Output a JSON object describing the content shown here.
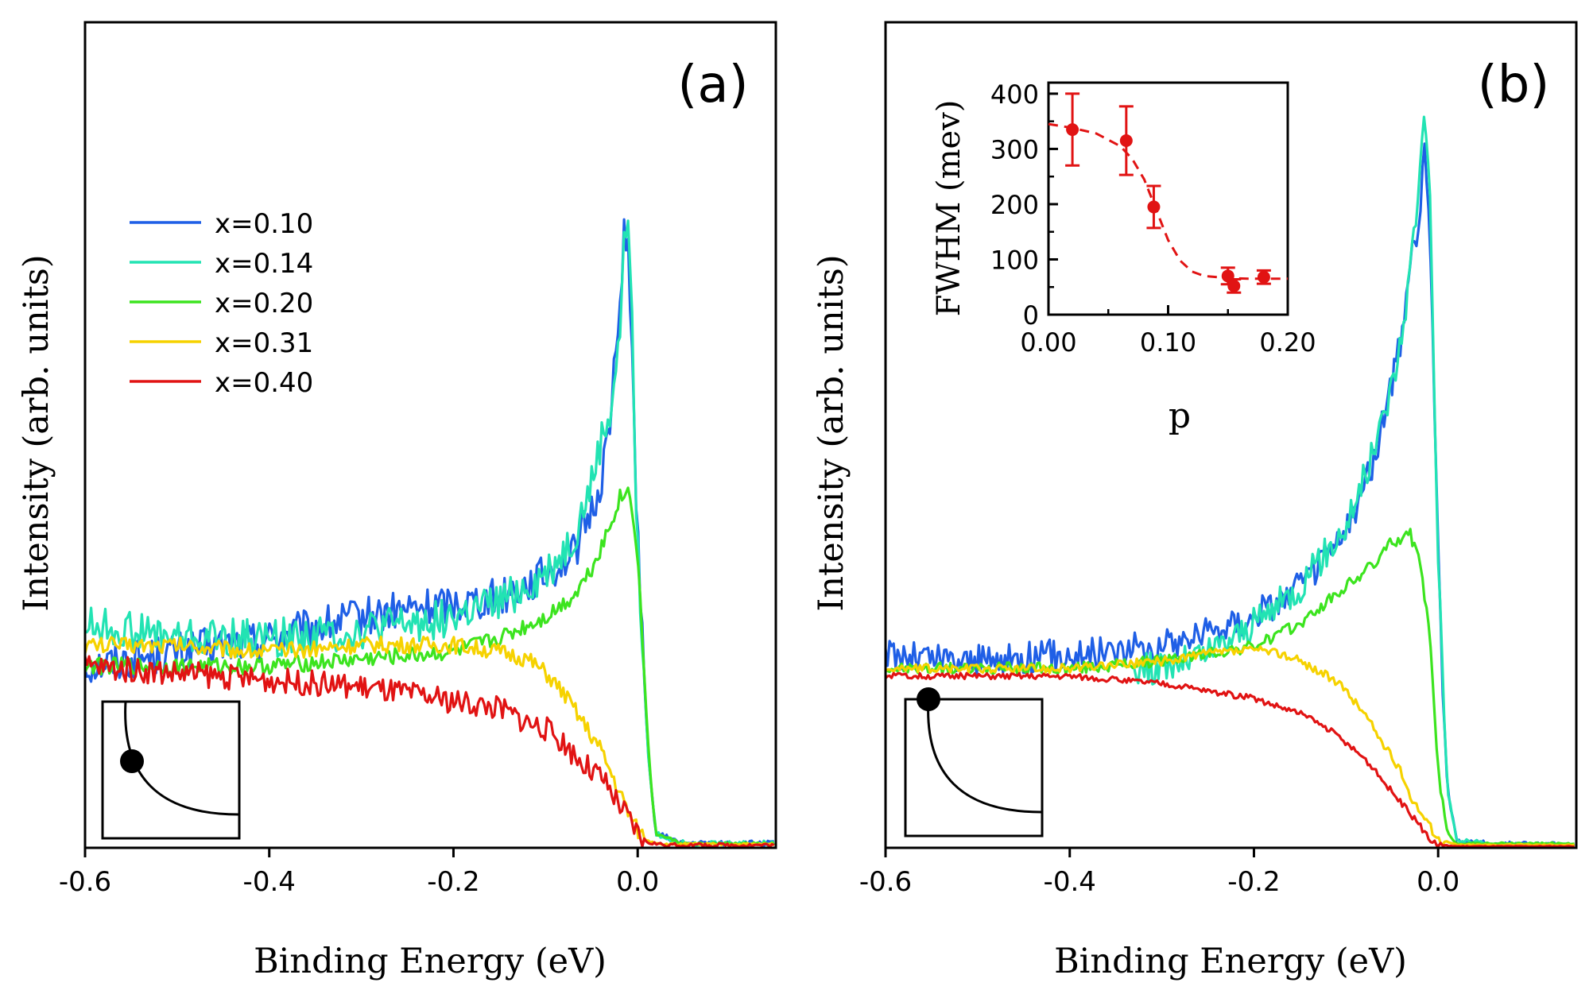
{
  "colors": {
    "x010": "#1f5fe6",
    "x014": "#22e3b3",
    "x020": "#3ce41f",
    "x031": "#f6d200",
    "x040": "#e11313",
    "inset_red": "#e11313",
    "axis": "#000000"
  },
  "chart_data": [
    {
      "type": "line",
      "panel_label": "(a)",
      "xlabel": "Binding Energy (eV)",
      "ylabel": "Intensity (arb. units)",
      "xlim": [
        -0.6,
        0.15
      ],
      "ylim": [
        0,
        1.0
      ],
      "x_ticks": [
        -0.6,
        -0.4,
        -0.2,
        0.0
      ],
      "x_tick_labels": [
        "-0.6",
        "-0.4",
        "-0.2",
        "0.0"
      ],
      "legend": {
        "position": "upper-left",
        "entries": [
          "x=0.10",
          "x=0.14",
          "x=0.20",
          "x=0.31",
          "x=0.40"
        ]
      },
      "marker_inset_icon": "fermi-surface-node-icon",
      "series": [
        {
          "name": "x=0.10",
          "color_key": "x010",
          "noise": 0.028,
          "points": [
            [
              -0.6,
              0.26
            ],
            [
              -0.5,
              0.28
            ],
            [
              -0.4,
              0.3
            ],
            [
              -0.3,
              0.33
            ],
            [
              -0.2,
              0.35
            ],
            [
              -0.15,
              0.36
            ],
            [
              -0.1,
              0.39
            ],
            [
              -0.07,
              0.42
            ],
            [
              -0.05,
              0.48
            ],
            [
              -0.04,
              0.52
            ],
            [
              -0.03,
              0.62
            ],
            [
              -0.02,
              0.75
            ],
            [
              -0.015,
              0.89
            ],
            [
              -0.01,
              0.86
            ],
            [
              -0.006,
              0.7
            ],
            [
              -0.002,
              0.5
            ],
            [
              0.005,
              0.3
            ],
            [
              0.012,
              0.12
            ],
            [
              0.02,
              0.02
            ],
            [
              0.05,
              0.006
            ],
            [
              0.15,
              0.006
            ]
          ]
        },
        {
          "name": "x=0.14",
          "color_key": "x014",
          "noise": 0.028,
          "points": [
            [
              -0.6,
              0.32
            ],
            [
              -0.5,
              0.3
            ],
            [
              -0.4,
              0.3
            ],
            [
              -0.3,
              0.31
            ],
            [
              -0.2,
              0.33
            ],
            [
              -0.15,
              0.35
            ],
            [
              -0.1,
              0.39
            ],
            [
              -0.07,
              0.44
            ],
            [
              -0.05,
              0.52
            ],
            [
              -0.04,
              0.58
            ],
            [
              -0.03,
              0.62
            ],
            [
              -0.02,
              0.72
            ],
            [
              -0.015,
              0.85
            ],
            [
              -0.01,
              0.92
            ],
            [
              -0.006,
              0.74
            ],
            [
              -0.002,
              0.5
            ],
            [
              0.005,
              0.3
            ],
            [
              0.012,
              0.12
            ],
            [
              0.02,
              0.02
            ],
            [
              0.05,
              0.006
            ],
            [
              0.15,
              0.006
            ]
          ]
        },
        {
          "name": "x=0.20",
          "color_key": "x020",
          "noise": 0.012,
          "points": [
            [
              -0.6,
              0.26
            ],
            [
              -0.5,
              0.26
            ],
            [
              -0.4,
              0.26
            ],
            [
              -0.3,
              0.27
            ],
            [
              -0.2,
              0.28
            ],
            [
              -0.15,
              0.3
            ],
            [
              -0.1,
              0.33
            ],
            [
              -0.07,
              0.36
            ],
            [
              -0.05,
              0.4
            ],
            [
              -0.03,
              0.46
            ],
            [
              -0.02,
              0.5
            ],
            [
              -0.01,
              0.51
            ],
            [
              -0.005,
              0.48
            ],
            [
              0.0,
              0.42
            ],
            [
              0.005,
              0.3
            ],
            [
              0.01,
              0.18
            ],
            [
              0.015,
              0.08
            ],
            [
              0.02,
              0.02
            ],
            [
              0.05,
              0.006
            ],
            [
              0.15,
              0.006
            ]
          ]
        },
        {
          "name": "x=0.31",
          "color_key": "x031",
          "noise": 0.012,
          "points": [
            [
              -0.6,
              0.29
            ],
            [
              -0.5,
              0.29
            ],
            [
              -0.4,
              0.28
            ],
            [
              -0.3,
              0.29
            ],
            [
              -0.2,
              0.29
            ],
            [
              -0.15,
              0.28
            ],
            [
              -0.12,
              0.27
            ],
            [
              -0.1,
              0.25
            ],
            [
              -0.08,
              0.22
            ],
            [
              -0.06,
              0.18
            ],
            [
              -0.04,
              0.14
            ],
            [
              -0.03,
              0.11
            ],
            [
              -0.02,
              0.08
            ],
            [
              -0.01,
              0.05
            ],
            [
              0.0,
              0.025
            ],
            [
              0.01,
              0.01
            ],
            [
              0.03,
              0.005
            ],
            [
              0.15,
              0.005
            ]
          ]
        },
        {
          "name": "x=0.40",
          "color_key": "x040",
          "noise": 0.018,
          "points": [
            [
              -0.6,
              0.26
            ],
            [
              -0.5,
              0.25
            ],
            [
              -0.4,
              0.24
            ],
            [
              -0.3,
              0.23
            ],
            [
              -0.2,
              0.21
            ],
            [
              -0.15,
              0.2
            ],
            [
              -0.12,
              0.18
            ],
            [
              -0.1,
              0.17
            ],
            [
              -0.08,
              0.15
            ],
            [
              -0.06,
              0.12
            ],
            [
              -0.04,
              0.1
            ],
            [
              -0.03,
              0.08
            ],
            [
              -0.02,
              0.06
            ],
            [
              -0.01,
              0.04
            ],
            [
              0.0,
              0.02
            ],
            [
              0.01,
              0.008
            ],
            [
              0.03,
              0.004
            ],
            [
              0.15,
              0.004
            ]
          ]
        }
      ]
    },
    {
      "type": "line",
      "panel_label": "(b)",
      "xlabel": "Binding Energy (eV)",
      "ylabel": "Intensity (arb. units)",
      "xlim": [
        -0.6,
        0.15
      ],
      "ylim": [
        0,
        1.0
      ],
      "x_ticks": [
        -0.6,
        -0.4,
        -0.2,
        0.0
      ],
      "x_tick_labels": [
        "-0.6",
        "-0.4",
        "-0.2",
        "0.0"
      ],
      "marker_inset_icon": "fermi-surface-antinode-icon",
      "series": [
        {
          "name": "x=0.10",
          "color_key": "x010",
          "noise": 0.022,
          "points": [
            [
              -0.6,
              0.26
            ],
            [
              -0.5,
              0.25
            ],
            [
              -0.4,
              0.26
            ],
            [
              -0.3,
              0.27
            ],
            [
              -0.2,
              0.31
            ],
            [
              -0.15,
              0.35
            ],
            [
              -0.1,
              0.42
            ],
            [
              -0.07,
              0.52
            ],
            [
              -0.05,
              0.62
            ],
            [
              -0.04,
              0.68
            ],
            [
              -0.03,
              0.78
            ],
            [
              -0.02,
              0.84
            ],
            [
              -0.015,
              0.95
            ],
            [
              -0.01,
              0.86
            ],
            [
              -0.006,
              0.7
            ],
            [
              -0.002,
              0.48
            ],
            [
              0.004,
              0.25
            ],
            [
              0.01,
              0.08
            ],
            [
              0.02,
              0.01
            ],
            [
              0.06,
              0.005
            ],
            [
              0.15,
              0.005
            ]
          ]
        },
        {
          "name": "x=0.14",
          "color_key": "x014",
          "noise": 0.022,
          "points": [
            [
              -0.33,
              0.24
            ],
            [
              -0.3,
              0.24
            ],
            [
              -0.25,
              0.26
            ],
            [
              -0.2,
              0.3
            ],
            [
              -0.15,
              0.35
            ],
            [
              -0.1,
              0.43
            ],
            [
              -0.07,
              0.53
            ],
            [
              -0.05,
              0.62
            ],
            [
              -0.04,
              0.68
            ],
            [
              -0.03,
              0.78
            ],
            [
              -0.02,
              0.9
            ],
            [
              -0.015,
              1.0
            ],
            [
              -0.01,
              0.92
            ],
            [
              -0.006,
              0.72
            ],
            [
              -0.002,
              0.48
            ],
            [
              0.004,
              0.25
            ],
            [
              0.01,
              0.08
            ],
            [
              0.02,
              0.01
            ],
            [
              0.06,
              0.005
            ]
          ]
        },
        {
          "name": "x=0.20",
          "color_key": "x020",
          "noise": 0.008,
          "points": [
            [
              -0.6,
              0.24
            ],
            [
              -0.5,
              0.24
            ],
            [
              -0.4,
              0.24
            ],
            [
              -0.3,
              0.25
            ],
            [
              -0.2,
              0.27
            ],
            [
              -0.15,
              0.3
            ],
            [
              -0.1,
              0.35
            ],
            [
              -0.07,
              0.38
            ],
            [
              -0.05,
              0.41
            ],
            [
              -0.03,
              0.42
            ],
            [
              -0.02,
              0.38
            ],
            [
              -0.01,
              0.3
            ],
            [
              -0.005,
              0.2
            ],
            [
              0.0,
              0.1
            ],
            [
              0.01,
              0.02
            ],
            [
              0.02,
              0.006
            ],
            [
              0.15,
              0.006
            ]
          ]
        },
        {
          "name": "x=0.31",
          "color_key": "x031",
          "noise": 0.006,
          "points": [
            [
              -0.6,
              0.24
            ],
            [
              -0.5,
              0.24
            ],
            [
              -0.4,
              0.24
            ],
            [
              -0.3,
              0.25
            ],
            [
              -0.25,
              0.26
            ],
            [
              -0.2,
              0.265
            ],
            [
              -0.17,
              0.26
            ],
            [
              -0.15,
              0.25
            ],
            [
              -0.12,
              0.23
            ],
            [
              -0.1,
              0.21
            ],
            [
              -0.08,
              0.18
            ],
            [
              -0.06,
              0.14
            ],
            [
              -0.04,
              0.1
            ],
            [
              -0.03,
              0.07
            ],
            [
              -0.02,
              0.05
            ],
            [
              -0.01,
              0.03
            ],
            [
              0.0,
              0.012
            ],
            [
              0.02,
              0.004
            ],
            [
              0.15,
              0.004
            ]
          ]
        },
        {
          "name": "x=0.40",
          "color_key": "x040",
          "noise": 0.004,
          "points": [
            [
              -0.6,
              0.23
            ],
            [
              -0.5,
              0.23
            ],
            [
              -0.4,
              0.23
            ],
            [
              -0.3,
              0.22
            ],
            [
              -0.25,
              0.21
            ],
            [
              -0.2,
              0.2
            ],
            [
              -0.15,
              0.18
            ],
            [
              -0.12,
              0.16
            ],
            [
              -0.1,
              0.14
            ],
            [
              -0.08,
              0.12
            ],
            [
              -0.06,
              0.09
            ],
            [
              -0.04,
              0.06
            ],
            [
              -0.03,
              0.045
            ],
            [
              -0.02,
              0.03
            ],
            [
              -0.01,
              0.012
            ],
            [
              0.0,
              0.004
            ],
            [
              0.02,
              0.002
            ],
            [
              0.15,
              0.002
            ]
          ]
        }
      ]
    },
    {
      "type": "scatter",
      "name": "inset",
      "xlabel": "p",
      "ylabel": "FWHM (mev)",
      "xlim": [
        0.0,
        0.2
      ],
      "ylim": [
        0,
        420
      ],
      "x_ticks": [
        0.0,
        0.1,
        0.2
      ],
      "x_tick_labels": [
        "0.00",
        "0.10",
        "0.20"
      ],
      "y_ticks": [
        0,
        100,
        200,
        300,
        400
      ],
      "y_tick_labels": [
        "0",
        "100",
        "200",
        "300",
        "400"
      ],
      "points": [
        {
          "x": 0.02,
          "y": 335,
          "err": 65
        },
        {
          "x": 0.065,
          "y": 315,
          "err": 62
        },
        {
          "x": 0.088,
          "y": 195,
          "err": 38
        },
        {
          "x": 0.15,
          "y": 70,
          "err": 15
        },
        {
          "x": 0.155,
          "y": 52,
          "err": 12
        },
        {
          "x": 0.18,
          "y": 68,
          "err": 12
        }
      ],
      "fit_line": [
        [
          0.0,
          345
        ],
        [
          0.02,
          338
        ],
        [
          0.04,
          328
        ],
        [
          0.06,
          305
        ],
        [
          0.07,
          282
        ],
        [
          0.08,
          245
        ],
        [
          0.09,
          190
        ],
        [
          0.1,
          135
        ],
        [
          0.11,
          98
        ],
        [
          0.12,
          78
        ],
        [
          0.13,
          70
        ],
        [
          0.15,
          66
        ],
        [
          0.17,
          65
        ],
        [
          0.2,
          65
        ]
      ]
    }
  ]
}
